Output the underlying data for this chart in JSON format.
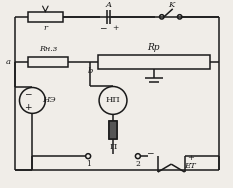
{
  "bg_color": "#f0ede8",
  "line_color": "#1a1a1a",
  "text_color": "#1a1a1a",
  "figsize": [
    2.33,
    1.88
  ],
  "dpi": 100,
  "labels": {
    "r": "r",
    "A": "A",
    "K": "K",
    "Rnz": "Rн.з",
    "Rp": "Rр",
    "a": "a",
    "b": "b",
    "NE": "НЭ",
    "NP": "НП",
    "P": "П",
    "1": "1",
    "2": "2",
    "ET": "EТ",
    "minus": "−",
    "plus": "+"
  }
}
